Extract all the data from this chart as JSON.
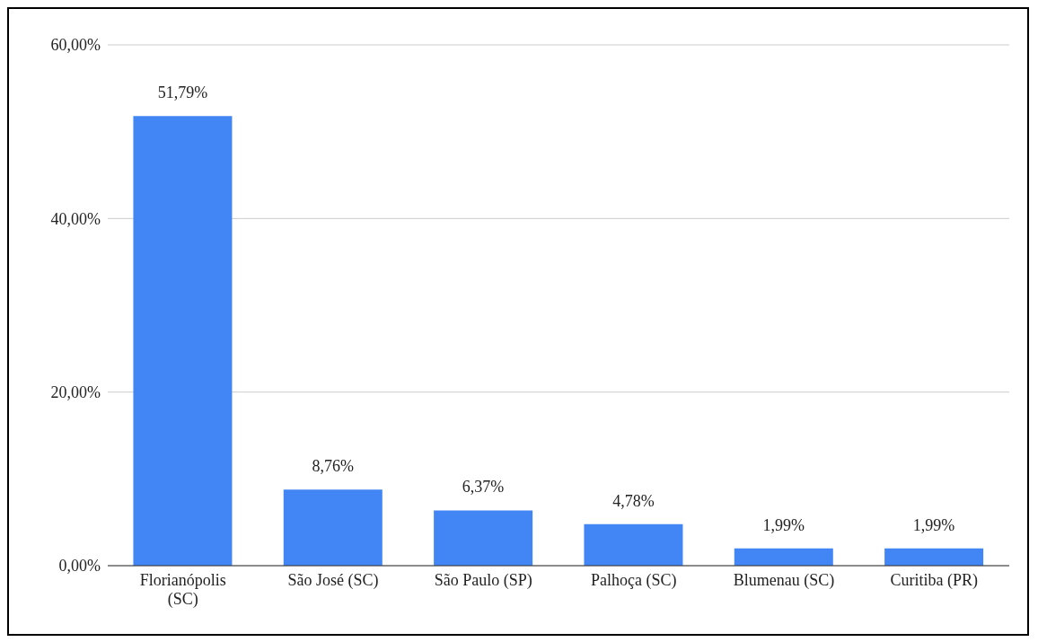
{
  "chart_data": {
    "type": "bar",
    "categories": [
      "Florianópolis (SC)",
      "São José (SC)",
      "São Paulo (SP)",
      "Palhoça (SC)",
      "Blumenau (SC)",
      "Curitiba (PR)"
    ],
    "values": [
      51.79,
      8.76,
      6.37,
      4.78,
      1.99,
      1.99
    ],
    "value_labels": [
      "51,79%",
      "8,76%",
      "6,37%",
      "4,78%",
      "1,99%",
      "1,99%"
    ],
    "color": "#4285f4",
    "ylim": [
      0,
      60
    ],
    "yticks": [
      {
        "value": 0,
        "label": "0,00%"
      },
      {
        "value": 20,
        "label": "20,00%"
      },
      {
        "value": 40,
        "label": "40,00%"
      },
      {
        "value": 60,
        "label": "60,00%"
      }
    ],
    "grid": "y",
    "legend": false
  }
}
